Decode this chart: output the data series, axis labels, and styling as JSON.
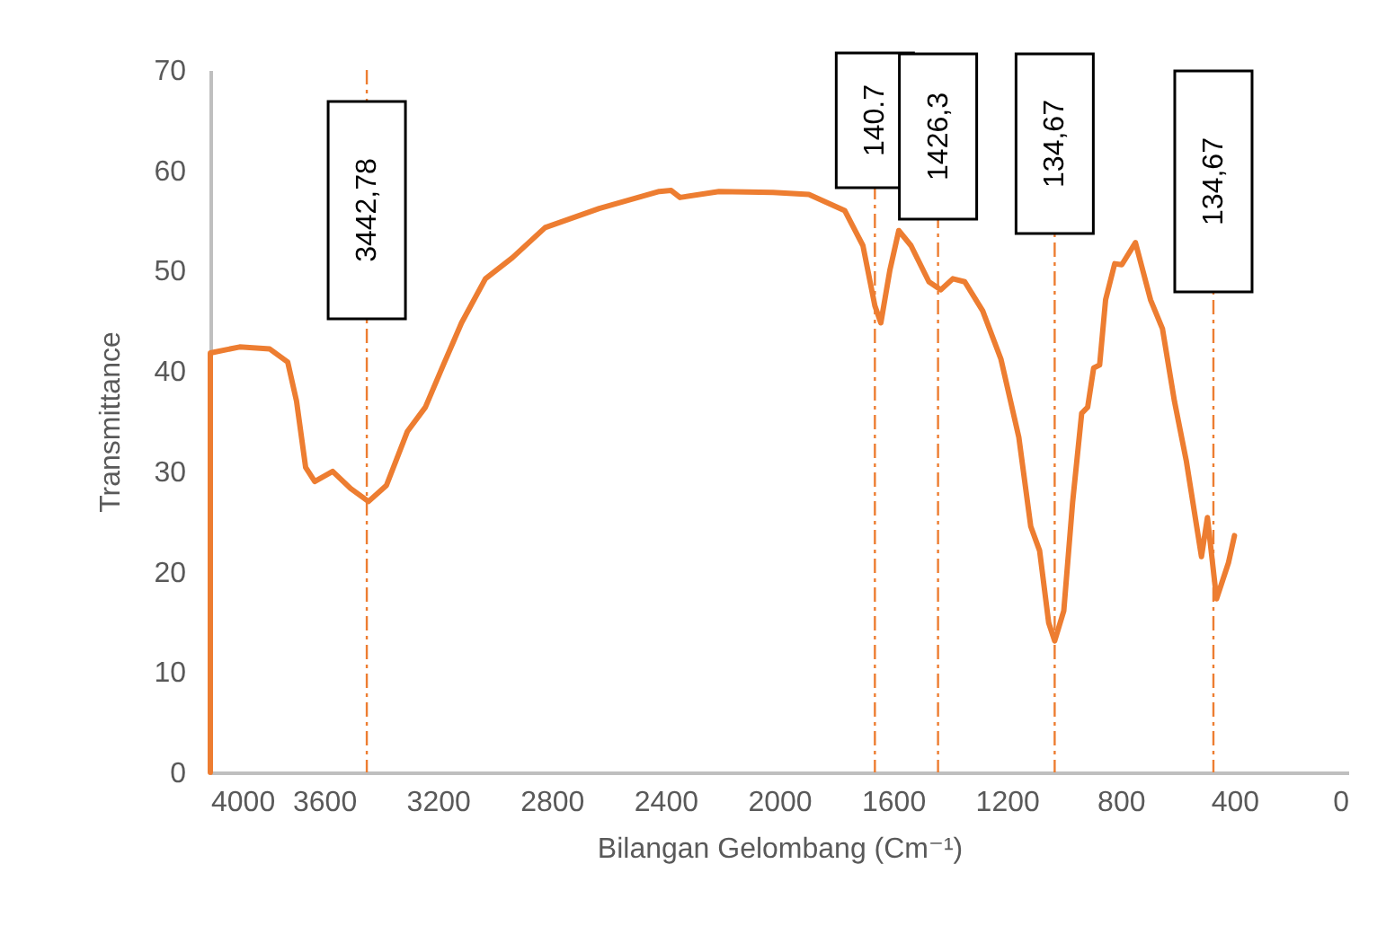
{
  "chart_data": {
    "type": "line",
    "xlabel": "Bilangan Gelombang  (Cm⁻¹)",
    "ylabel": "Transmittance",
    "xlim": [
      4000,
      0
    ],
    "xticks": [
      4000,
      3600,
      3200,
      2800,
      2400,
      2000,
      1600,
      1200,
      800,
      400,
      0
    ],
    "ylim": [
      0,
      70
    ],
    "yticks": [
      0,
      10,
      20,
      30,
      40,
      50,
      60,
      70
    ],
    "grid": false,
    "line_style": "solid",
    "marker": "none",
    "x": [
      4000,
      4000,
      3897,
      3791,
      3728,
      3697,
      3665,
      3633,
      3570,
      3507,
      3444,
      3381,
      3307,
      3244,
      3181,
      3117,
      3033,
      2938,
      2823,
      2633,
      2422,
      2380,
      2349,
      2212,
      2022,
      1896,
      1770,
      1706,
      1664,
      1643,
      1611,
      1580,
      1537,
      1474,
      1432,
      1390,
      1348,
      1285,
      1221,
      1158,
      1116,
      1085,
      1053,
      1032,
      1000,
      969,
      937,
      916,
      895,
      874,
      853,
      821,
      796,
      748,
      695,
      653,
      611,
      569,
      516,
      495,
      463,
      421,
      400
    ],
    "series": [
      {
        "color": "#ed7d31",
        "values": [
          0,
          41.8,
          42.4,
          42.2,
          40.9,
          37.0,
          30.4,
          29.0,
          30.0,
          28.3,
          27.0,
          28.6,
          34.0,
          36.4,
          40.6,
          44.8,
          49.2,
          51.3,
          54.3,
          56.2,
          57.9,
          58.0,
          57.3,
          57.9,
          57.8,
          57.6,
          56.0,
          52.5,
          46.5,
          44.8,
          50.1,
          54.0,
          52.5,
          48.9,
          48.1,
          49.2,
          48.9,
          46.0,
          41.2,
          33.4,
          24.5,
          22.1,
          14.9,
          13.1,
          16.1,
          26.9,
          35.8,
          36.4,
          40.3,
          40.6,
          47.1,
          50.7,
          50.6,
          52.8,
          47.1,
          44.2,
          37.0,
          31.0,
          21.5,
          25.4,
          17.3,
          20.9,
          23.6
        ]
      }
    ],
    "annotations": [
      "3442,78",
      "140.7",
      "1426,3",
      "134,67",
      "134,67"
    ],
    "ref_lines": [
      {
        "axis": "x",
        "value": 3450,
        "color": "#ed7d31",
        "line_style": "dashed"
      },
      {
        "axis": "x",
        "value": 1664,
        "color": "#ed7d31",
        "line_style": "dashed"
      },
      {
        "axis": "x",
        "value": 1442,
        "color": "#ed7d31",
        "line_style": "dashed"
      },
      {
        "axis": "x",
        "value": 1032,
        "color": "#ed7d31",
        "line_style": "dashed"
      },
      {
        "axis": "x",
        "value": 474,
        "color": "#ed7d31",
        "line_style": "dashed"
      }
    ]
  }
}
